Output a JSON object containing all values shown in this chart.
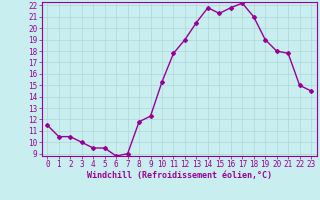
{
  "x": [
    0,
    1,
    2,
    3,
    4,
    5,
    6,
    7,
    8,
    9,
    10,
    11,
    12,
    13,
    14,
    15,
    16,
    17,
    18,
    19,
    20,
    21,
    22,
    23
  ],
  "y": [
    11.5,
    10.5,
    10.5,
    10.0,
    9.5,
    9.5,
    8.8,
    9.0,
    11.8,
    12.3,
    15.3,
    17.8,
    19.0,
    20.5,
    21.8,
    21.3,
    21.8,
    22.2,
    21.0,
    19.0,
    18.0,
    17.8,
    15.0,
    14.5
  ],
  "color": "#990099",
  "bg_color": "#c8eef0",
  "xlabel": "Windchill (Refroidissement éolien,°C)",
  "ylim": [
    9,
    22
  ],
  "xlim": [
    -0.5,
    23.5
  ],
  "yticks": [
    9,
    10,
    11,
    12,
    13,
    14,
    15,
    16,
    17,
    18,
    19,
    20,
    21,
    22
  ],
  "xticks": [
    0,
    1,
    2,
    3,
    4,
    5,
    6,
    7,
    8,
    9,
    10,
    11,
    12,
    13,
    14,
    15,
    16,
    17,
    18,
    19,
    20,
    21,
    22,
    23
  ],
  "grid_color": "#b0d8d8",
  "marker": "D",
  "marker_size": 2,
  "line_width": 1.0,
  "tick_fontsize": 5.5,
  "xlabel_fontsize": 6.0
}
